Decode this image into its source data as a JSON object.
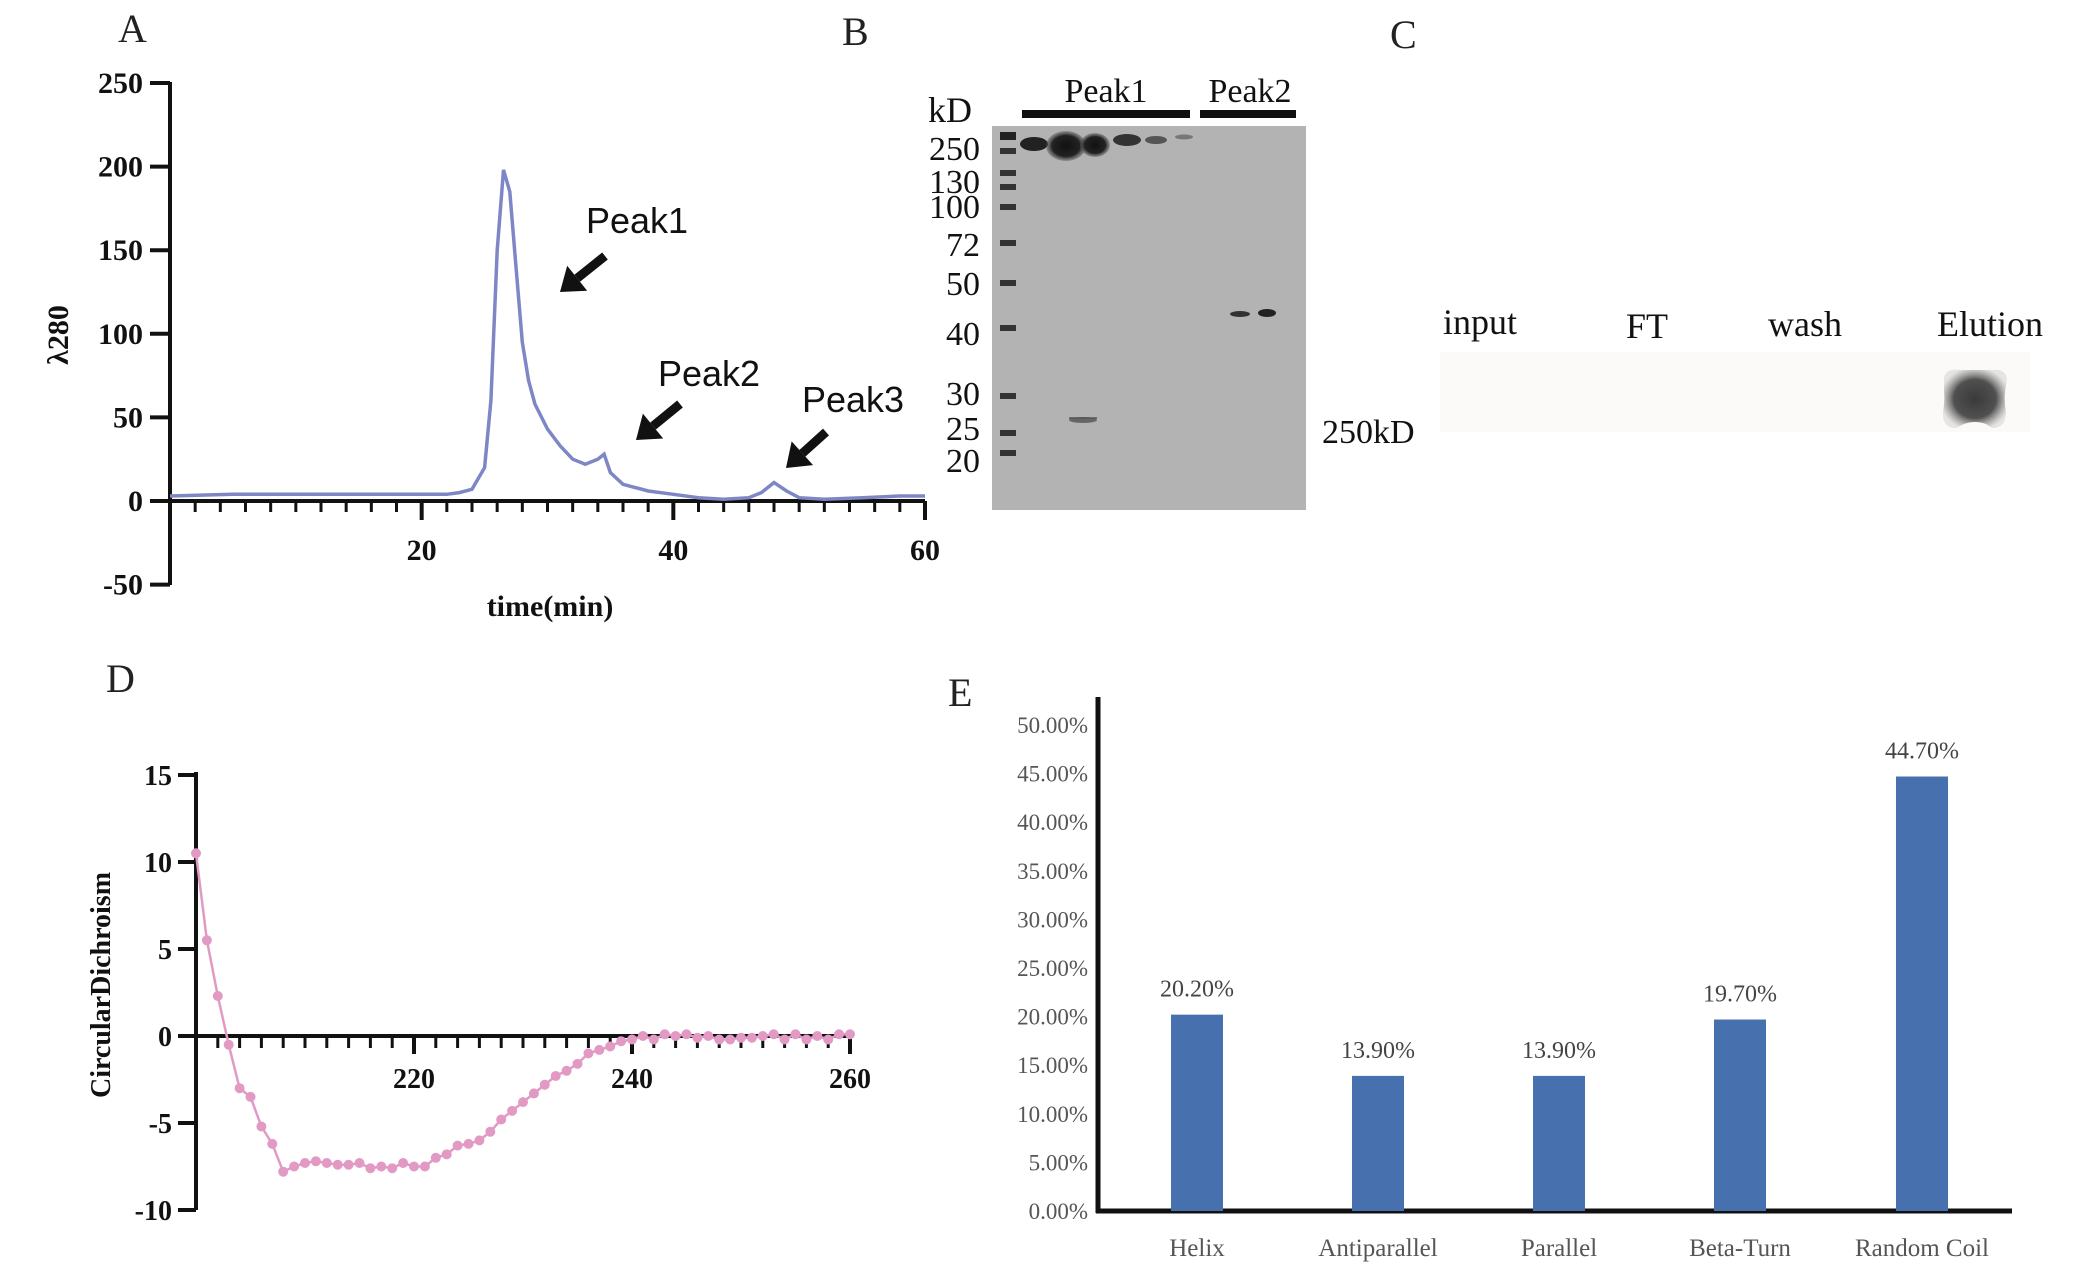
{
  "panels": {
    "A": {
      "letter": "A"
    },
    "B": {
      "letter": "B"
    },
    "C": {
      "letter": "C"
    },
    "D": {
      "letter": "D"
    },
    "E": {
      "letter": "E"
    }
  },
  "chart_data": [
    {
      "panel": "A",
      "type": "line",
      "title": "",
      "xlabel": "time(min)",
      "ylabel": "λ280",
      "xlim": [
        0,
        60
      ],
      "ylim": [
        -50,
        250
      ],
      "xticks": [
        20,
        40,
        60
      ],
      "yticks": [
        250,
        200,
        150,
        100,
        50,
        0,
        -50
      ],
      "color": "#7d87c6",
      "series": [
        {
          "x": [
            0,
            5,
            10,
            15,
            20,
            22,
            23,
            24,
            25,
            25.5,
            26,
            26.5,
            27,
            27.5,
            28,
            28.5,
            29,
            30,
            31,
            32,
            33,
            34,
            34.5,
            35,
            36,
            38,
            40,
            42,
            44,
            46,
            47,
            48,
            49,
            50,
            52,
            55,
            58,
            60
          ],
          "y": [
            3,
            4,
            4,
            4,
            4,
            4,
            5,
            7,
            20,
            60,
            150,
            198,
            185,
            140,
            95,
            72,
            58,
            43,
            33,
            25,
            22,
            25,
            28,
            17,
            10,
            6,
            4,
            2,
            1,
            2,
            5,
            11,
            6,
            2,
            1,
            2,
            3,
            3
          ]
        }
      ],
      "annotations": [
        {
          "text": "Peak1",
          "x": 32,
          "y": 115
        },
        {
          "text": "Peak2",
          "x": 38,
          "y": 30
        },
        {
          "text": "Peak3",
          "x": 48,
          "y": 10
        }
      ]
    },
    {
      "panel": "D",
      "type": "line",
      "title": "",
      "xlabel": "",
      "ylabel": "CircularDichroism",
      "xlim": [
        200,
        260
      ],
      "ylim": [
        -10,
        15
      ],
      "xticks": [
        220,
        240,
        260
      ],
      "yticks": [
        15,
        10,
        5,
        0,
        -5,
        -10
      ],
      "color": "#e29ac4",
      "series": [
        {
          "x": [
            200,
            201,
            202,
            203,
            204,
            205,
            206,
            207,
            208,
            209,
            210,
            211,
            212,
            213,
            214,
            215,
            216,
            217,
            218,
            219,
            220,
            221,
            222,
            223,
            224,
            225,
            226,
            227,
            228,
            229,
            230,
            231,
            232,
            233,
            234,
            235,
            236,
            237,
            238,
            239,
            240,
            241,
            242,
            243,
            244,
            245,
            246,
            247,
            248,
            249,
            250,
            251,
            252,
            253,
            254,
            255,
            256,
            257,
            258,
            259,
            260
          ],
          "y": [
            10.5,
            5.5,
            2.3,
            -0.5,
            -3,
            -3.5,
            -5.2,
            -6.2,
            -7.8,
            -7.5,
            -7.3,
            -7.2,
            -7.3,
            -7.4,
            -7.4,
            -7.3,
            -7.6,
            -7.5,
            -7.6,
            -7.3,
            -7.5,
            -7.5,
            -7.0,
            -6.8,
            -6.3,
            -6.2,
            -6.0,
            -5.5,
            -4.8,
            -4.3,
            -3.8,
            -3.3,
            -2.8,
            -2.3,
            -2.0,
            -1.6,
            -1.0,
            -0.8,
            -0.6,
            -0.3,
            -0.2,
            0.0,
            -0.2,
            0.1,
            0.0,
            0.1,
            -0.1,
            0.0,
            -0.2,
            -0.2,
            -0.1,
            -0.1,
            0.0,
            0.1,
            -0.2,
            0.1,
            -0.2,
            0.0,
            -0.2,
            0.1,
            0.1
          ]
        }
      ]
    },
    {
      "panel": "E",
      "type": "bar",
      "title": "",
      "xlabel": "",
      "ylabel": "",
      "categories": [
        "Helix",
        "Antiparallel",
        "Parallel",
        "Beta-Turn",
        "Random Coil"
      ],
      "values": [
        20.2,
        13.9,
        13.9,
        19.7,
        44.7
      ],
      "value_labels": [
        "20.20%",
        "13.90%",
        "13.90%",
        "19.70%",
        "44.70%"
      ],
      "ylim": [
        0,
        50
      ],
      "yticks": [
        "0.00%",
        "5.00%",
        "10.00%",
        "15.00%",
        "20.00%",
        "25.00%",
        "30.00%",
        "35.00%",
        "40.00%",
        "45.00%",
        "50.00%"
      ],
      "color": "#4670ae"
    }
  ],
  "gel_B": {
    "unit": "kD",
    "markers": [
      "250",
      "130",
      "100",
      "72",
      "50",
      "40",
      "30",
      "25",
      "20"
    ],
    "groups": [
      "Peak1",
      "Peak2"
    ]
  },
  "blot_C": {
    "lanes": [
      "input",
      "FT",
      "wash",
      "Elution"
    ],
    "size_label": "250kD"
  }
}
